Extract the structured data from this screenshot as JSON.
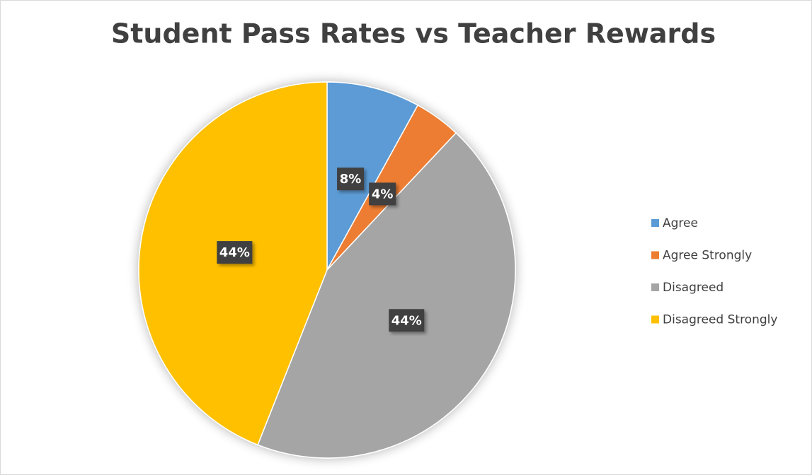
{
  "chart_data": {
    "type": "pie",
    "title": "Student Pass Rates vs Teacher Rewards",
    "categories": [
      "Agree",
      "Agree Strongly",
      "Disagreed",
      "Disagreed Strongly"
    ],
    "values": [
      8,
      4,
      44,
      44
    ],
    "value_labels": [
      "8%",
      "4%",
      "44%",
      "44%"
    ],
    "colors": [
      "#5b9bd5",
      "#ed7d31",
      "#a5a5a5",
      "#ffc000"
    ],
    "legend": "right"
  }
}
